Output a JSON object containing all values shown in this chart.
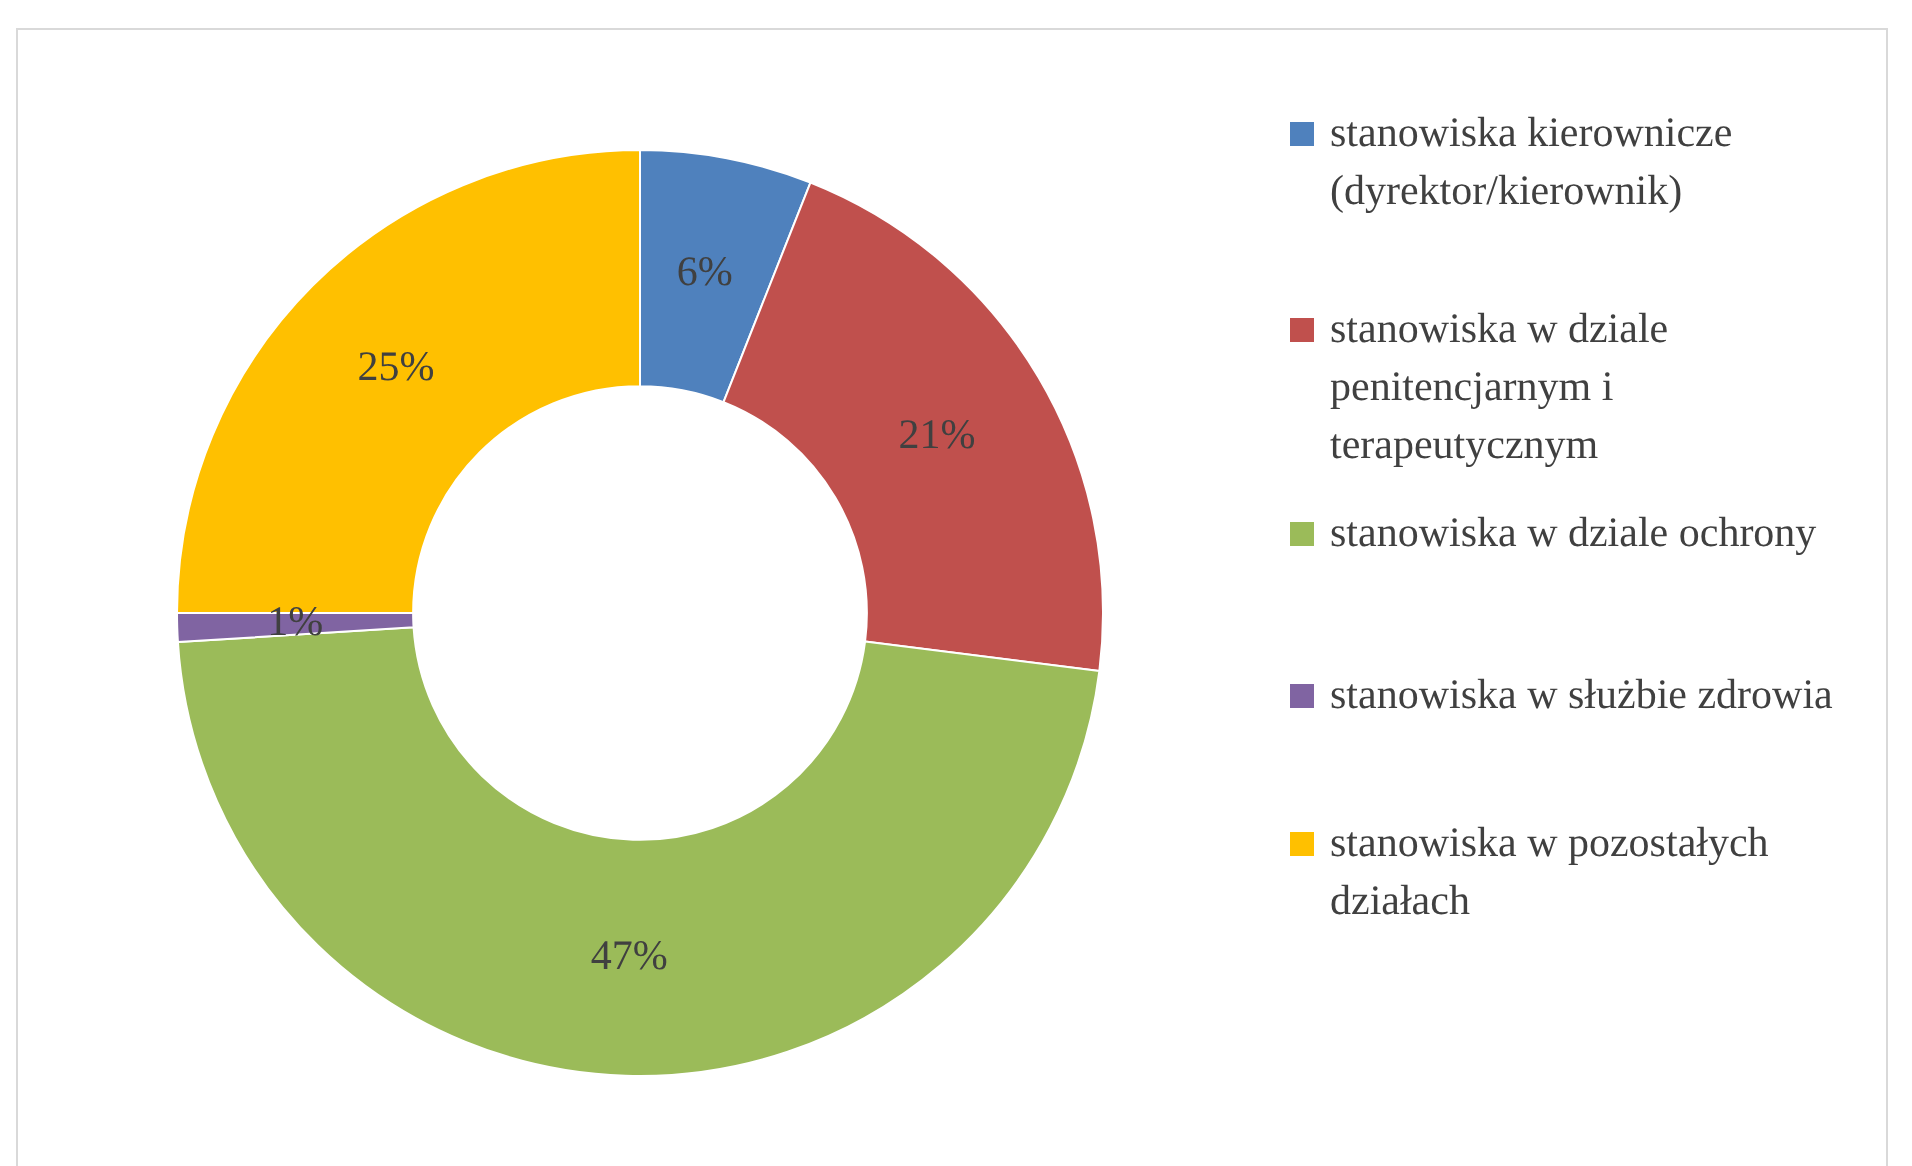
{
  "chart_data": {
    "type": "donut",
    "categories": [
      "stanowiska kierownicze (dyrektor/kierownik)",
      "stanowiska w dziale penitencjarnym i terapeutycznym",
      "stanowiska w dziale ochrony",
      "stanowiska w służbie zdrowia",
      "stanowiska w pozostałych działach"
    ],
    "values": [
      6,
      21,
      47,
      1,
      25
    ],
    "colors": [
      "#4f81bd",
      "#c0504d",
      "#9bbb59",
      "#8064a2",
      "#ffc000"
    ],
    "value_labels": [
      "6%",
      "21%",
      "47%",
      "1%",
      "25%"
    ],
    "legend": "right"
  }
}
